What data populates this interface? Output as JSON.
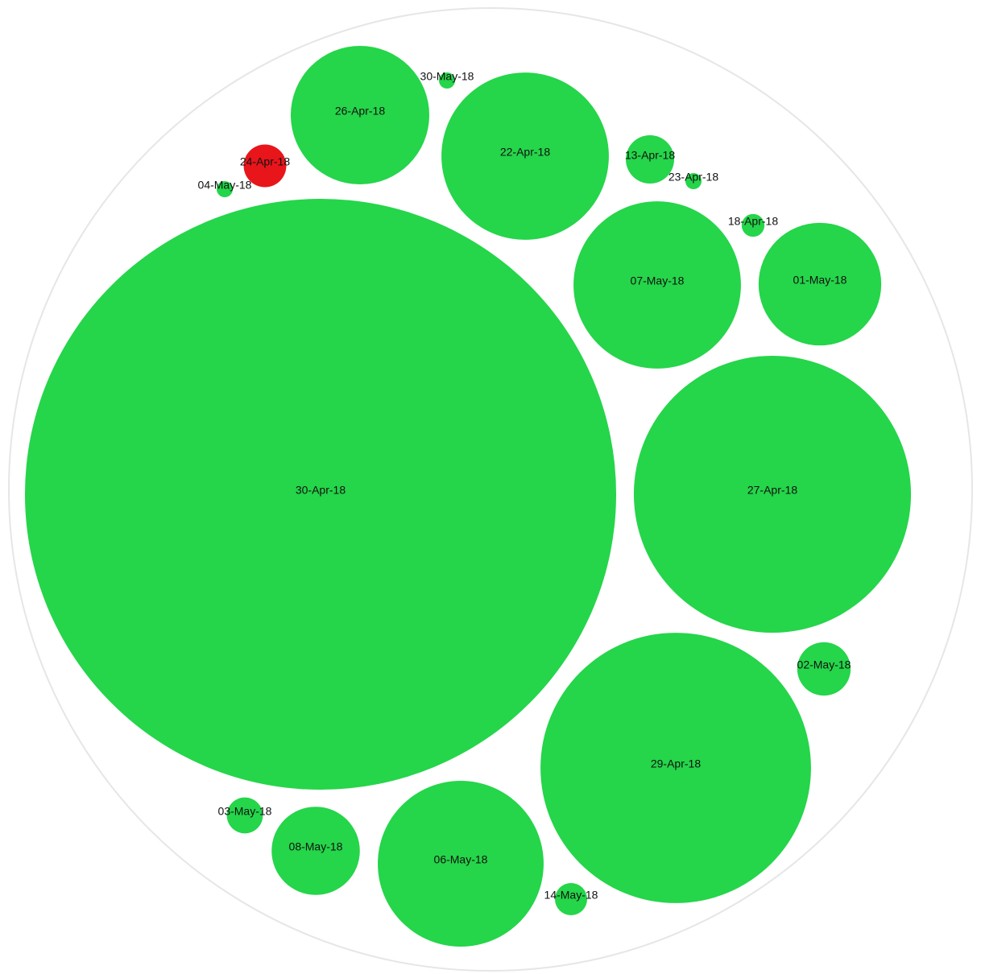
{
  "chart_data": {
    "type": "bubble",
    "categories": [
      "30-Apr-18",
      "27-Apr-18",
      "29-Apr-18",
      "06-May-18",
      "22-Apr-18",
      "07-May-18",
      "26-Apr-18",
      "01-May-18",
      "08-May-18",
      "02-May-18",
      "13-Apr-18",
      "24-Apr-18",
      "03-May-18",
      "14-May-18",
      "18-Apr-18",
      "23-Apr-18",
      "30-May-18",
      "04-May-18"
    ],
    "values": [
      1347,
      296,
      282,
      106,
      108,
      108,
      74,
      58,
      30,
      11,
      9,
      7,
      5,
      4,
      2,
      1,
      1,
      1
    ],
    "colors": [
      "#25d54a",
      "#25d54a",
      "#25d54a",
      "#25d54a",
      "#25d54a",
      "#25d54a",
      "#25d54a",
      "#25d54a",
      "#25d54a",
      "#25d54a",
      "#25d54a",
      "#e8151b",
      "#25d54a",
      "#25d54a",
      "#25d54a",
      "#25d54a",
      "#25d54a",
      "#25d54a"
    ]
  }
}
